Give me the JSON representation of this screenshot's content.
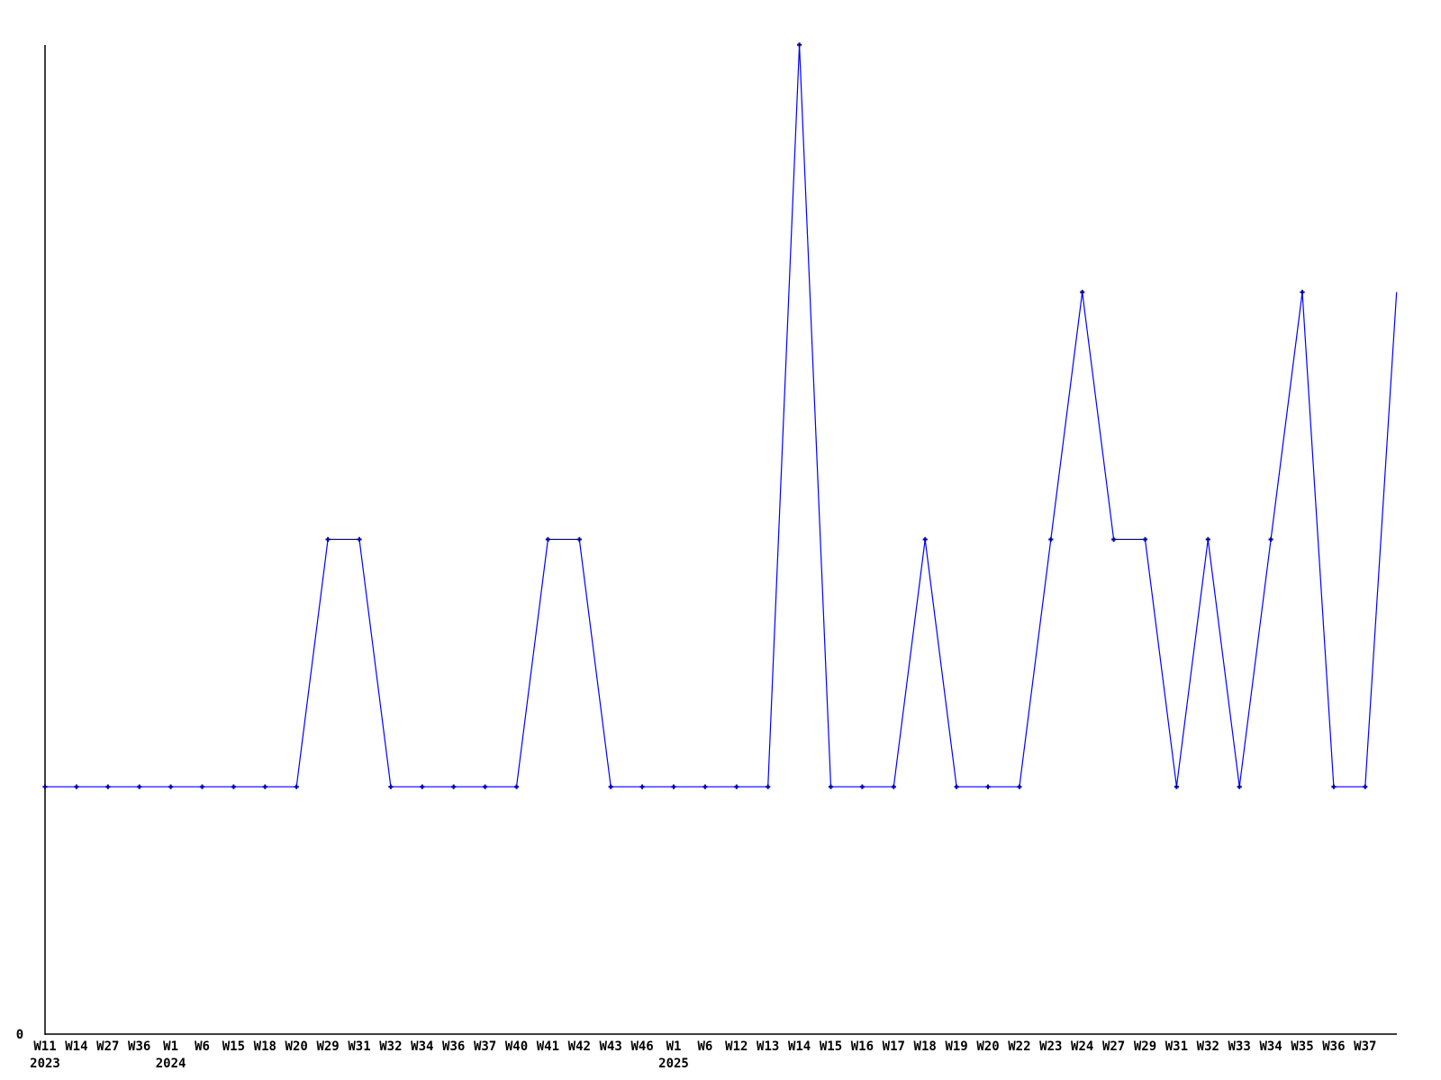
{
  "chart_data": {
    "type": "line",
    "title": "",
    "xlabel": "",
    "ylabel": "",
    "ylim": [
      0,
      4
    ],
    "grid": false,
    "legend": "none",
    "line_color": "#0000ff",
    "marker_color": "#0000aa",
    "axis_color": "#000000",
    "y_axis": {
      "min_label": "0"
    },
    "year_labels": [
      {
        "point_index": 0,
        "text": "2023"
      },
      {
        "point_index": 4,
        "text": "2024"
      },
      {
        "point_index": 20,
        "text": "2025"
      }
    ],
    "points": [
      {
        "label": "W11",
        "value": 1
      },
      {
        "label": "W14",
        "value": 1
      },
      {
        "label": "W27",
        "value": 1
      },
      {
        "label": "W36",
        "value": 1
      },
      {
        "label": "W1",
        "value": 1
      },
      {
        "label": "W6",
        "value": 1
      },
      {
        "label": "W15",
        "value": 1
      },
      {
        "label": "W18",
        "value": 1
      },
      {
        "label": "W20",
        "value": 1
      },
      {
        "label": "W29",
        "value": 2
      },
      {
        "label": "W31",
        "value": 2
      },
      {
        "label": "W32",
        "value": 1
      },
      {
        "label": "W34",
        "value": 1
      },
      {
        "label": "W36",
        "value": 1
      },
      {
        "label": "W37",
        "value": 1
      },
      {
        "label": "W40",
        "value": 1
      },
      {
        "label": "W41",
        "value": 2
      },
      {
        "label": "W42",
        "value": 2
      },
      {
        "label": "W43",
        "value": 1
      },
      {
        "label": "W46",
        "value": 1
      },
      {
        "label": "W1",
        "value": 1
      },
      {
        "label": "W6",
        "value": 1
      },
      {
        "label": "W12",
        "value": 1
      },
      {
        "label": "W13",
        "value": 1
      },
      {
        "label": "W14",
        "value": 4
      },
      {
        "label": "W15",
        "value": 1
      },
      {
        "label": "W16",
        "value": 1
      },
      {
        "label": "W17",
        "value": 1
      },
      {
        "label": "W18",
        "value": 2
      },
      {
        "label": "W19",
        "value": 1
      },
      {
        "label": "W20",
        "value": 1
      },
      {
        "label": "W22",
        "value": 1
      },
      {
        "label": "W23",
        "value": 2
      },
      {
        "label": "W24",
        "value": 3
      },
      {
        "label": "W27",
        "value": 2
      },
      {
        "label": "W29",
        "value": 2
      },
      {
        "label": "W31",
        "value": 1
      },
      {
        "label": "W32",
        "value": 2
      },
      {
        "label": "W33",
        "value": 1
      },
      {
        "label": "W34",
        "value": 2
      },
      {
        "label": "W35",
        "value": 3
      },
      {
        "label": "W36",
        "value": 1
      },
      {
        "label": "W37",
        "value": 1
      },
      {
        "label": "",
        "value": 3
      }
    ]
  }
}
